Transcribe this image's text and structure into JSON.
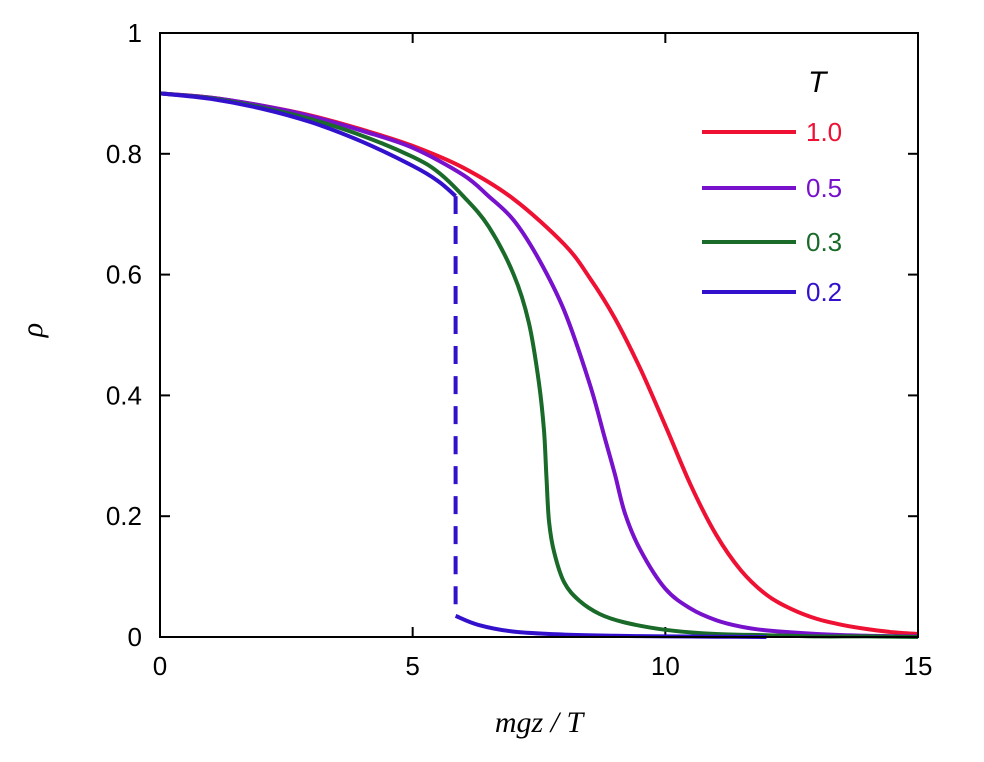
{
  "chart_data": {
    "type": "line",
    "title": "",
    "xlabel": "mgz / T",
    "ylabel": "ρ",
    "xlim": [
      0,
      15
    ],
    "ylim": [
      0,
      1
    ],
    "xticks": [
      0,
      5,
      10,
      15
    ],
    "xtick_labels": [
      "0",
      "5",
      "10",
      "15"
    ],
    "yticks": [
      0,
      0.2,
      0.4,
      0.6,
      0.8,
      1
    ],
    "ytick_labels": [
      "0",
      "0.2",
      "0.4",
      "0.6",
      "0.8",
      "1"
    ],
    "grid": false,
    "legend": {
      "title": "T",
      "placement": "top-right"
    },
    "series": [
      {
        "name": "1.0",
        "color": "#ee1133",
        "style": "solid",
        "x": [
          0,
          1,
          2,
          3,
          4,
          5,
          6,
          7,
          8,
          8.5,
          9,
          9.5,
          10,
          10.5,
          11,
          11.5,
          12,
          12.5,
          13,
          13.5,
          14,
          14.5,
          15
        ],
        "y": [
          0.9,
          0.893,
          0.88,
          0.863,
          0.84,
          0.813,
          0.777,
          0.725,
          0.65,
          0.595,
          0.528,
          0.445,
          0.35,
          0.252,
          0.17,
          0.11,
          0.07,
          0.046,
          0.03,
          0.02,
          0.013,
          0.008,
          0.005
        ]
      },
      {
        "name": "0.5",
        "color": "#7711cc",
        "style": "solid",
        "x": [
          0,
          1,
          2,
          3,
          4,
          5,
          6,
          6.5,
          7,
          7.5,
          8,
          8.5,
          8.8,
          9,
          9.2,
          9.5,
          10,
          10.5,
          11,
          11.5,
          12,
          13,
          14,
          15
        ],
        "y": [
          0.9,
          0.893,
          0.88,
          0.862,
          0.838,
          0.81,
          0.765,
          0.73,
          0.69,
          0.625,
          0.54,
          0.42,
          0.33,
          0.27,
          0.205,
          0.145,
          0.08,
          0.047,
          0.028,
          0.017,
          0.011,
          0.005,
          0.002,
          0.001
        ]
      },
      {
        "name": "0.3",
        "color": "#1a6a2a",
        "style": "solid",
        "x": [
          0,
          1,
          2,
          3,
          4,
          5,
          5.5,
          6,
          6.5,
          7,
          7.3,
          7.5,
          7.6,
          7.65,
          7.7,
          7.8,
          8,
          8.3,
          8.7,
          9.2,
          10,
          11,
          12,
          13,
          14,
          15
        ],
        "y": [
          0.9,
          0.892,
          0.877,
          0.857,
          0.83,
          0.795,
          0.77,
          0.73,
          0.68,
          0.6,
          0.52,
          0.42,
          0.34,
          0.26,
          0.19,
          0.14,
          0.09,
          0.06,
          0.038,
          0.024,
          0.012,
          0.005,
          0.003,
          0.001,
          0.001,
          0
        ]
      },
      {
        "name": "0.2",
        "color": "#3311cc",
        "style": "solid",
        "x": [
          0,
          1,
          2,
          3,
          4,
          5,
          5.5,
          5.85
        ],
        "y": [
          0.9,
          0.891,
          0.875,
          0.852,
          0.82,
          0.78,
          0.755,
          0.73
        ]
      },
      {
        "name": "0.2",
        "color": "#3311cc",
        "style": "dashed",
        "x": [
          5.85,
          5.85
        ],
        "y": [
          0.73,
          0.035
        ]
      },
      {
        "name": "0.2",
        "color": "#3311cc",
        "style": "solid",
        "x": [
          5.85,
          6.3,
          7,
          8,
          9,
          10,
          11,
          12
        ],
        "y": [
          0.035,
          0.02,
          0.009,
          0.004,
          0.002,
          0.001,
          0.0005,
          0
        ]
      }
    ]
  }
}
